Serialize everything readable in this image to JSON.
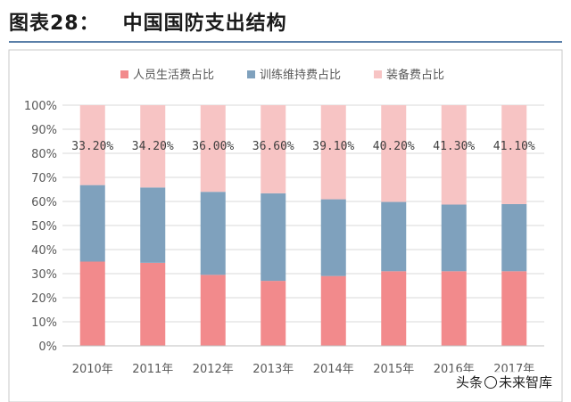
{
  "header": {
    "figure_number": "图表28：",
    "title": "中国国防支出结构"
  },
  "watermark": {
    "platform": "头条",
    "account": "未来智库"
  },
  "colors": {
    "personnel": "#f28a8c",
    "training": "#7fa1bd",
    "equipment": "#f7c4c4",
    "grid": "#d9d9d9",
    "axis": "#595959",
    "rule": "#5a7fa8"
  },
  "chart_data": {
    "type": "bar",
    "stacked": true,
    "title": "中国国防支出结构",
    "categories": [
      "2010年",
      "2011年",
      "2012年",
      "2013年",
      "2014年",
      "2015年",
      "2016年",
      "2017年"
    ],
    "series": [
      {
        "name": "人员生活费占比",
        "color": "#f28a8c",
        "values": [
          35.0,
          34.5,
          29.5,
          27.0,
          29.0,
          31.0,
          31.0,
          31.0
        ]
      },
      {
        "name": "训练维持费占比",
        "color": "#7fa1bd",
        "values": [
          31.8,
          31.3,
          34.5,
          36.4,
          31.9,
          28.8,
          27.7,
          27.9
        ]
      },
      {
        "name": "装备费占比",
        "color": "#f7c4c4",
        "values": [
          33.2,
          34.2,
          36.0,
          36.6,
          39.1,
          40.2,
          41.3,
          41.1
        ]
      }
    ],
    "data_labels": [
      "33.20%",
      "34.20%",
      "36.00%",
      "36.60%",
      "39.10%",
      "40.20%",
      "41.30%",
      "41.10%"
    ],
    "y_ticks": [
      "0%",
      "10%",
      "20%",
      "30%",
      "40%",
      "50%",
      "60%",
      "70%",
      "80%",
      "90%",
      "100%"
    ],
    "ylim": [
      0,
      100
    ],
    "xlabel": "",
    "ylabel": "",
    "grid": true,
    "legend_position": "top"
  }
}
